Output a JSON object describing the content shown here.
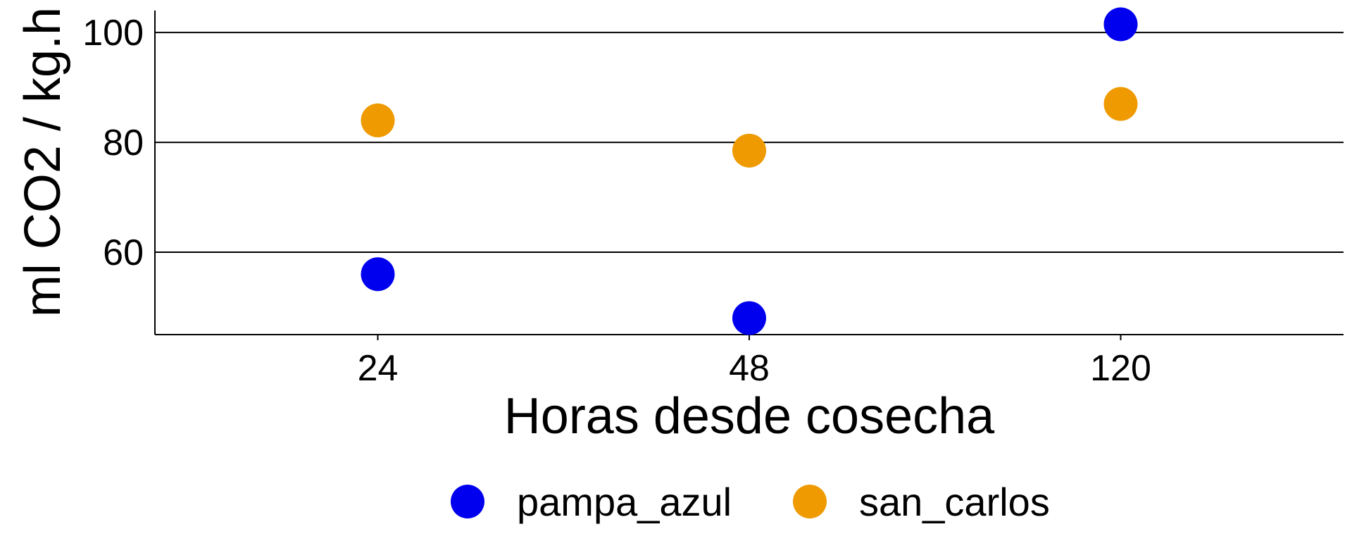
{
  "chart_data": {
    "type": "scatter",
    "title": "",
    "xlabel": "Horas desde cosecha",
    "ylabel": "ml CO2 / kg.h",
    "categories": [
      "24",
      "48",
      "120"
    ],
    "ylim": [
      45,
      104
    ],
    "yticks": [
      60,
      80,
      100
    ],
    "grid": "horizontal major lines",
    "legend_position": "bottom",
    "series": [
      {
        "name": "pampa_azul",
        "color": "#0000ee",
        "values": [
          56,
          48,
          101.5
        ]
      },
      {
        "name": "san_carlos",
        "color": "#ee9a00",
        "values": [
          84,
          78.5,
          87
        ]
      }
    ]
  }
}
